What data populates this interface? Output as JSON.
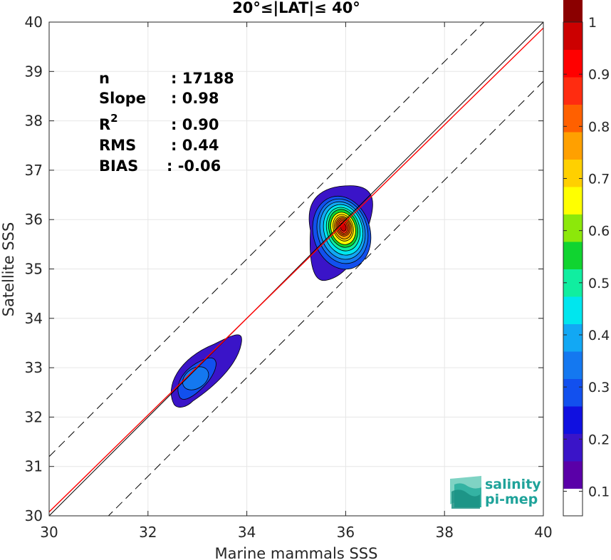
{
  "chart_data": {
    "type": "contour",
    "title": "20°≤|LAT|≤ 40°",
    "xlabel": "Marine mammals SSS",
    "ylabel": "Satellite SSS",
    "xlim": [
      30,
      40
    ],
    "ylim": [
      30,
      40
    ],
    "xticks": [
      "30",
      "32",
      "34",
      "36",
      "38",
      "40"
    ],
    "yticks": [
      "30",
      "31",
      "32",
      "33",
      "34",
      "35",
      "36",
      "37",
      "38",
      "39",
      "40"
    ],
    "grid": true,
    "stats": [
      {
        "label": "n",
        "value": ": 17188"
      },
      {
        "label": "Slope",
        "value": ": 0.98"
      },
      {
        "label": "R",
        "sup": "2",
        "value": ": 0.90"
      },
      {
        "label": "RMS",
        "value": ": 0.44"
      },
      {
        "label": "BIAS",
        "value": ": -0.06"
      }
    ],
    "reference_lines": [
      {
        "name": "identity",
        "color": "#000000",
        "style": "solid",
        "slope": 1,
        "intercept": 0
      },
      {
        "name": "regression",
        "color": "#ff0000",
        "style": "solid",
        "slope": 0.98,
        "intercept": 0.68
      },
      {
        "name": "upper-band",
        "color": "#000000",
        "style": "dashed",
        "slope": 1,
        "intercept": 1.2
      },
      {
        "name": "lower-band",
        "color": "#000000",
        "style": "dashed",
        "slope": 1,
        "intercept": -1.2
      }
    ],
    "density_clusters": [
      {
        "center": [
          35.95,
          35.85
        ],
        "peak": 0.95
      },
      {
        "center": [
          33.05,
          32.9
        ],
        "peak": 0.25
      }
    ],
    "colorbar": {
      "min": 0,
      "max": 1,
      "ticks": [
        "0.1",
        "0.2",
        "0.3",
        "0.4",
        "0.5",
        "0.6",
        "0.7",
        "0.8",
        "0.9",
        "1"
      ],
      "colors": [
        "#ffffff",
        "#5a00a8",
        "#3a14c8",
        "#1010e0",
        "#1250ee",
        "#1478f0",
        "#12a8f4",
        "#00e6ee",
        "#10eea0",
        "#10d430",
        "#8ce80a",
        "#ffff00",
        "#ffd000",
        "#ffa000",
        "#ff6000",
        "#ff2c10",
        "#ff0000",
        "#cc0000",
        "#8b0000"
      ]
    }
  },
  "logo": {
    "line1": "salinity",
    "line2": "pi-mep"
  }
}
